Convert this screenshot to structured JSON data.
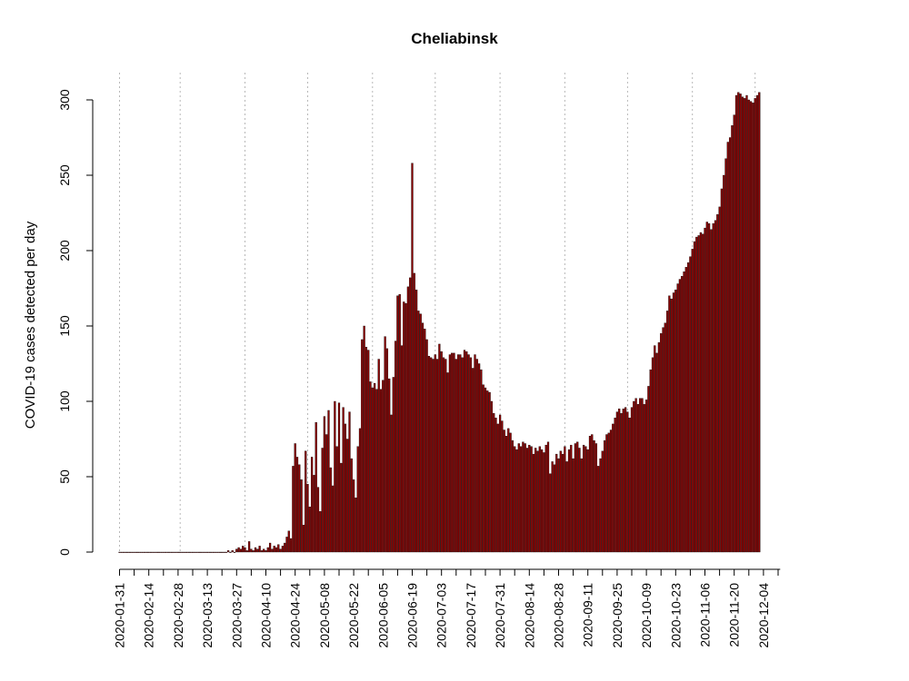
{
  "chart_data": {
    "type": "bar",
    "title": "Cheliabinsk",
    "ylabel": "COVID-19 cases detected per day",
    "xlabel": "",
    "ylim": [
      0,
      300
    ],
    "yticks": [
      0,
      50,
      100,
      150,
      200,
      250,
      300
    ],
    "x_start": "2020-01-31",
    "x_end": "2020-12-12",
    "xtick_labels": [
      "2020-01-31",
      "2020-02-14",
      "2020-02-28",
      "2020-03-13",
      "2020-03-27",
      "2020-04-10",
      "2020-04-24",
      "2020-05-08",
      "2020-05-22",
      "2020-06-05",
      "2020-06-19",
      "2020-07-03",
      "2020-07-17",
      "2020-07-31",
      "2020-08-14",
      "2020-08-28",
      "2020-09-11",
      "2020-09-25",
      "2020-10-09",
      "2020-10-23",
      "2020-11-06",
      "2020-11-20",
      "2020-12-04"
    ],
    "vertical_lines": [
      "2020-01-31",
      "2020-02-29",
      "2020-03-31",
      "2020-04-30",
      "2020-05-31",
      "2020-06-30",
      "2020-07-31",
      "2020-08-31",
      "2020-09-30",
      "2020-10-31",
      "2020-11-30"
    ],
    "bar_color": "#8b0000",
    "bar_edge_color": "#000000",
    "values": [
      0,
      0,
      0,
      0,
      0,
      0,
      0,
      0,
      0,
      0,
      0,
      0,
      0,
      0,
      0,
      0,
      0,
      0,
      0,
      0,
      0,
      0,
      0,
      0,
      0,
      0,
      0,
      0,
      0,
      0,
      0,
      0,
      0,
      0,
      0,
      0,
      0,
      0,
      0,
      0,
      0,
      0,
      0,
      0,
      0,
      0,
      0,
      0,
      0,
      0,
      0,
      0,
      1,
      0,
      1,
      0,
      2,
      3,
      2,
      4,
      3,
      1,
      7,
      2,
      1,
      3,
      2,
      4,
      1,
      2,
      1,
      3,
      6,
      2,
      4,
      3,
      5,
      2,
      4,
      6,
      10,
      14,
      9,
      57,
      72,
      63,
      58,
      48,
      18,
      67,
      45,
      30,
      63,
      51,
      86,
      43,
      27,
      69,
      90,
      78,
      94,
      56,
      44,
      100,
      70,
      99,
      59,
      96,
      85,
      75,
      93,
      62,
      48,
      36,
      70,
      82,
      141,
      150,
      136,
      134,
      113,
      109,
      112,
      108,
      128,
      108,
      114,
      143,
      135,
      115,
      91,
      116,
      140,
      170,
      171,
      137,
      166,
      165,
      176,
      182,
      258,
      185,
      174,
      160,
      158,
      152,
      148,
      141,
      130,
      129,
      128,
      131,
      128,
      138,
      133,
      129,
      128,
      119,
      131,
      132,
      132,
      128,
      131,
      131,
      129,
      134,
      133,
      131,
      129,
      122,
      131,
      128,
      125,
      121,
      111,
      109,
      107,
      106,
      100,
      92,
      89,
      85,
      91,
      87,
      81,
      77,
      82,
      79,
      74,
      70,
      68,
      72,
      70,
      73,
      72,
      69,
      71,
      70,
      65,
      69,
      67,
      70,
      68,
      66,
      71,
      73,
      52,
      60,
      58,
      65,
      62,
      67,
      65,
      70,
      60,
      68,
      71,
      62,
      72,
      73,
      69,
      62,
      71,
      70,
      68,
      77,
      78,
      74,
      72,
      57,
      62,
      67,
      74,
      78,
      79,
      81,
      85,
      89,
      93,
      95,
      92,
      95,
      96,
      93,
      89,
      96,
      100,
      102,
      98,
      102,
      102,
      98,
      101,
      110,
      121,
      129,
      137,
      132,
      139,
      145,
      149,
      152,
      160,
      170,
      168,
      172,
      174,
      178,
      181,
      183,
      186,
      189,
      192,
      196,
      201,
      206,
      209,
      210,
      212,
      211,
      215,
      219,
      218,
      214,
      218,
      220,
      224,
      229,
      241,
      250,
      261,
      272,
      275,
      283,
      290,
      303,
      305,
      304,
      302,
      301,
      303,
      300,
      299,
      298,
      301,
      303,
      305
    ]
  }
}
